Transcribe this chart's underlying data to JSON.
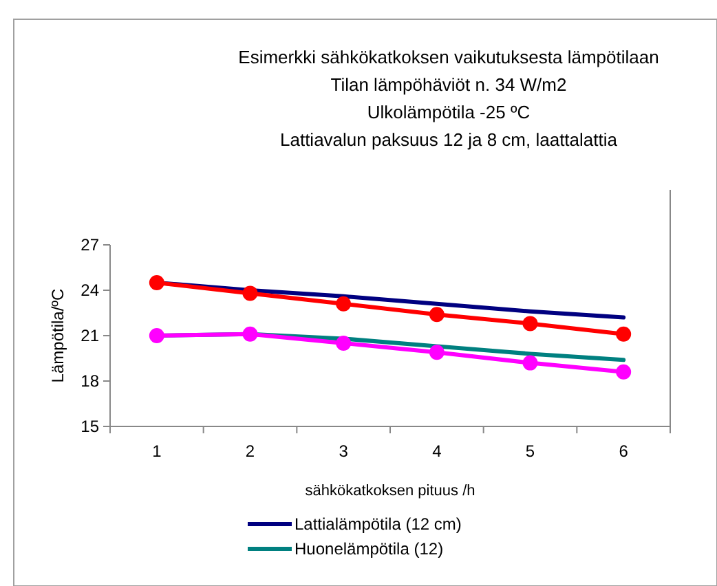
{
  "chart_data": {
    "type": "line",
    "title": "Esimerkki sähkökatkoksen vaikutuksesta lämpötilaan",
    "subtitle": "Tilan lämpöhäviöt n. 34 W/m2\nUlkolämpötila -25 ºC\nLattiavalun paksuus 12 ja 8 cm, laattalattia",
    "xlabel": "sähkökatkoksen pituus /h",
    "ylabel": "Lämpötila/ºC",
    "categories": [
      "1",
      "2",
      "3",
      "4",
      "5",
      "6"
    ],
    "ylim": [
      15,
      27
    ],
    "yticks": [
      15,
      18,
      21,
      24,
      27
    ],
    "grid": false,
    "legend": "bottom",
    "series": [
      {
        "name": "Lattialämpötila (12 cm)",
        "color": "#000080",
        "marker": "none",
        "values": [
          24.5,
          24.0,
          23.6,
          23.1,
          22.6,
          22.2
        ]
      },
      {
        "name": "Huonelämpötila (12)",
        "color": "#008080",
        "marker": "none",
        "values": [
          21.0,
          21.1,
          20.8,
          20.3,
          19.8,
          19.4
        ]
      },
      {
        "color": "#ff0000",
        "marker": "circle",
        "values": [
          24.5,
          23.8,
          23.1,
          22.4,
          21.8,
          21.1
        ]
      },
      {
        "color": "#ff00ff",
        "marker": "circle",
        "values": [
          21.0,
          21.1,
          20.5,
          19.9,
          19.2,
          18.6
        ]
      }
    ]
  }
}
